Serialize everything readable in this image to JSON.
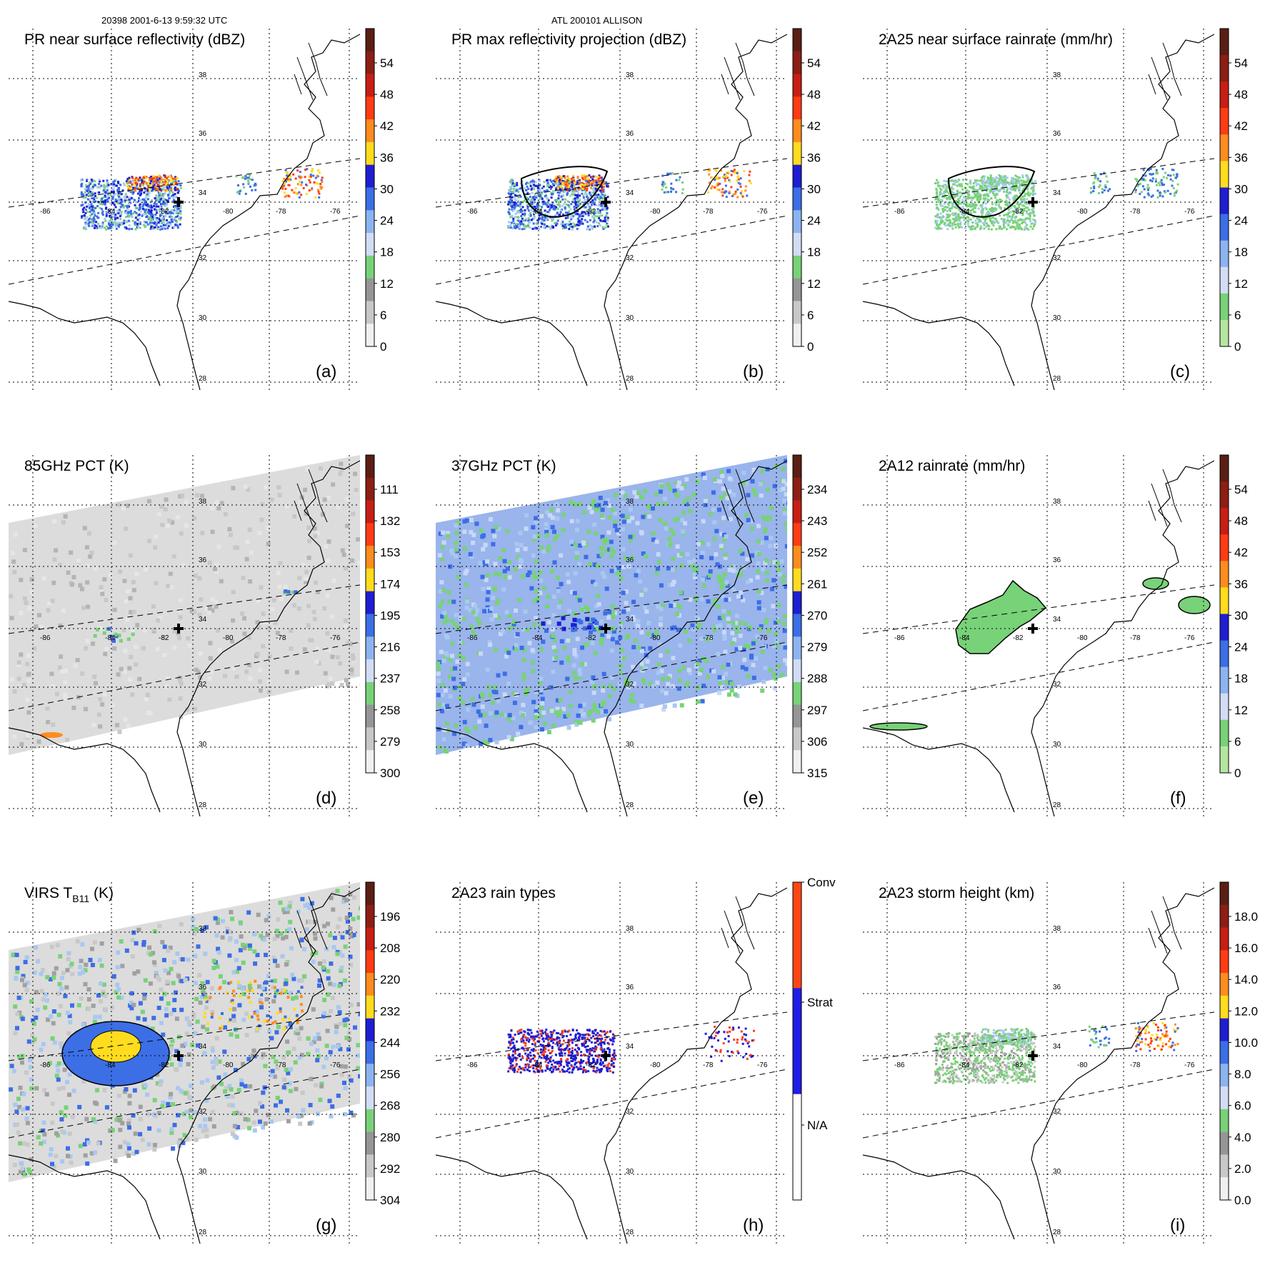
{
  "header": {
    "left": "20398 2001-6-13 9:59:32 UTC",
    "center": "ATL 200101 ALLISON"
  },
  "grid": {
    "lon_labels": [
      "-86",
      "-84",
      "-82",
      "-80",
      "-78",
      "-76"
    ],
    "lat_labels": [
      "38",
      "36",
      "34",
      "32",
      "30",
      "28"
    ]
  },
  "panels": [
    {
      "key": "a",
      "title": "PR near surface reflectivity (dBZ)",
      "letter": "(a)",
      "ticks": [
        "54",
        "48",
        "42",
        "36",
        "30",
        "24",
        "18",
        "12",
        "6",
        "0"
      ],
      "colors": [
        "#5a1e14",
        "#8c1e14",
        "#c81e14",
        "#ff3c14",
        "#ff8c1e",
        "#ffdc1e",
        "#1e1ed2",
        "#3c6ee6",
        "#8cb4f0",
        "#d2dcf5",
        "#78d278",
        "#969696",
        "#c8c8c8",
        "#f0f0f0"
      ],
      "field": "pr"
    },
    {
      "key": "b",
      "title": "PR max reflectivity projection (dBZ)",
      "letter": "(b)",
      "ticks": [
        "54",
        "48",
        "42",
        "36",
        "30",
        "24",
        "18",
        "12",
        "6",
        "0"
      ],
      "colors": [
        "#5a1e14",
        "#8c1e14",
        "#c81e14",
        "#ff3c14",
        "#ff8c1e",
        "#ffdc1e",
        "#1e1ed2",
        "#3c6ee6",
        "#8cb4f0",
        "#d2dcf5",
        "#78d278",
        "#969696",
        "#c8c8c8",
        "#f0f0f0"
      ],
      "field": "prmax"
    },
    {
      "key": "c",
      "title": "2A25 near surface rainrate (mm/hr)",
      "letter": "(c)",
      "ticks": [
        "54",
        "48",
        "42",
        "36",
        "30",
        "24",
        "18",
        "12",
        "6",
        "0"
      ],
      "colors": [
        "#5a1e14",
        "#8c1e14",
        "#c81e14",
        "#ff3c14",
        "#ff8c1e",
        "#ffdc1e",
        "#1e1ed2",
        "#3c6ee6",
        "#8cb4f0",
        "#d2dcf5",
        "#78d278",
        "#b4e6a0"
      ],
      "field": "rain"
    },
    {
      "key": "d",
      "title": "85GHz PCT (K)",
      "letter": "(d)",
      "ticks": [
        "111",
        "132",
        "153",
        "174",
        "195",
        "216",
        "237",
        "258",
        "279",
        "300"
      ],
      "colors": [
        "#5a1e14",
        "#8c1e14",
        "#c81e14",
        "#ff3c14",
        "#ff8c1e",
        "#ffdc1e",
        "#1e1ed2",
        "#3c6ee6",
        "#8cb4f0",
        "#d2dcf5",
        "#78d278",
        "#969696",
        "#c8c8c8",
        "#f0f0f0"
      ],
      "field": "pct85"
    },
    {
      "key": "e",
      "title": "37GHz PCT (K)",
      "letter": "(e)",
      "ticks": [
        "234",
        "243",
        "252",
        "261",
        "270",
        "279",
        "288",
        "297",
        "306",
        "315"
      ],
      "colors": [
        "#5a1e14",
        "#8c1e14",
        "#c81e14",
        "#ff3c14",
        "#ff8c1e",
        "#ffdc1e",
        "#1e1ed2",
        "#3c6ee6",
        "#8cb4f0",
        "#d2dcf5",
        "#78d278",
        "#969696",
        "#c8c8c8",
        "#f0f0f0"
      ],
      "field": "pct37"
    },
    {
      "key": "f",
      "title": "2A12 rainrate (mm/hr)",
      "letter": "(f)",
      "ticks": [
        "54",
        "48",
        "42",
        "36",
        "30",
        "24",
        "18",
        "12",
        "6",
        "0"
      ],
      "colors": [
        "#5a1e14",
        "#8c1e14",
        "#c81e14",
        "#ff3c14",
        "#ff8c1e",
        "#ffdc1e",
        "#1e1ed2",
        "#3c6ee6",
        "#8cb4f0",
        "#d2dcf5",
        "#78d278",
        "#b4e6a0"
      ],
      "field": "rain12"
    },
    {
      "key": "g",
      "title": "VIRS T",
      "title_sub": "B11",
      "title_end": " (K)",
      "letter": "(g)",
      "ticks": [
        "196",
        "208",
        "220",
        "232",
        "244",
        "256",
        "268",
        "280",
        "292",
        "304"
      ],
      "colors": [
        "#5a1e14",
        "#8c1e14",
        "#c81e14",
        "#ff3c14",
        "#ff8c1e",
        "#ffdc1e",
        "#1e1ed2",
        "#3c6ee6",
        "#8cb4f0",
        "#d2dcf5",
        "#78d278",
        "#969696",
        "#c8c8c8",
        "#f0f0f0"
      ],
      "field": "virs"
    },
    {
      "key": "h",
      "title": "2A23 rain types",
      "letter": "(h)",
      "ticks": [
        "Conv",
        "Strat",
        "N/A"
      ],
      "colors": [
        "#ff4614",
        "#1e1ee6",
        "#ffffff"
      ],
      "field": "types"
    },
    {
      "key": "i",
      "title": "2A23 storm height (km)",
      "letter": "(i)",
      "ticks": [
        "18.0",
        "16.0",
        "14.0",
        "12.0",
        "10.0",
        "8.0",
        "6.0",
        "4.0",
        "2.0",
        "0.0"
      ],
      "colors": [
        "#5a1e14",
        "#8c1e14",
        "#c81e14",
        "#ff3c14",
        "#ff8c1e",
        "#ffdc1e",
        "#1e1ed2",
        "#3c6ee6",
        "#8cb4f0",
        "#d2dcf5",
        "#78d278",
        "#969696",
        "#c8c8c8",
        "#f0f0f0"
      ],
      "field": "height"
    }
  ],
  "palette": {
    "green": "#78d278",
    "lightblue": "#a8c8f0",
    "blue": "#3c6ee6",
    "darkblue": "#1e1ed2",
    "yellow": "#ffdc1e",
    "orange": "#ff8c1e",
    "red": "#ff3c14",
    "gray": "#a0a0a0",
    "lightgray": "#e6e6e6",
    "midgray": "#c8c8c8"
  }
}
